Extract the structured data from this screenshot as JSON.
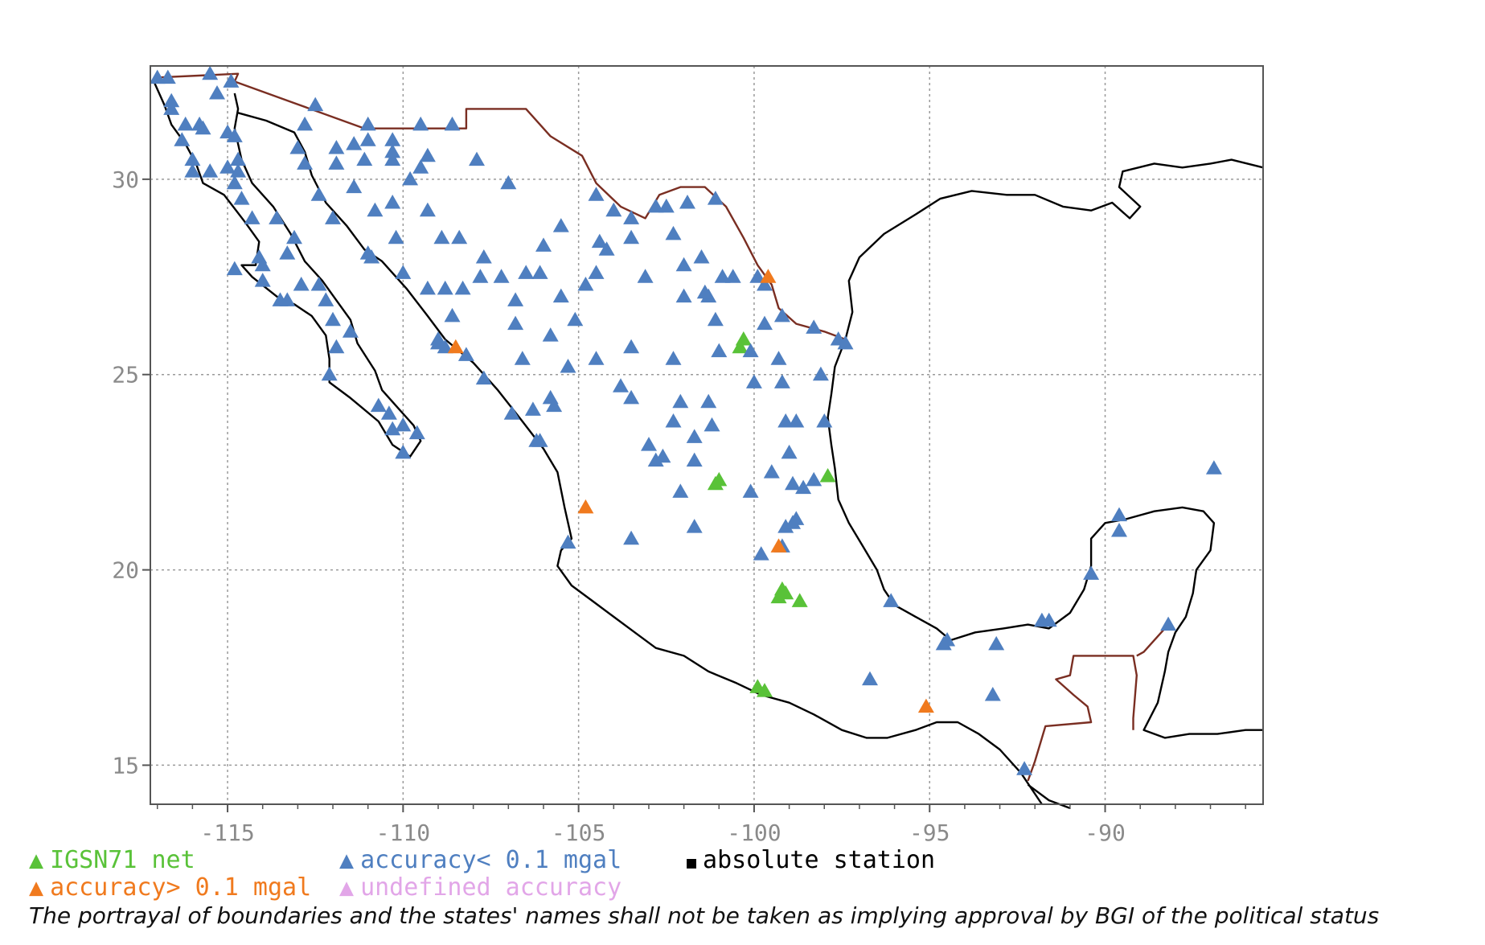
{
  "chart_data": {
    "type": "scatter",
    "title": "",
    "xlabel": "",
    "ylabel": "",
    "xlim": [
      -117.2,
      -85.5
    ],
    "ylim": [
      14.0,
      32.9
    ],
    "x_ticks": [
      -115,
      -110,
      -105,
      -100,
      -95,
      -90
    ],
    "y_ticks": [
      15,
      20,
      25,
      30
    ],
    "x_tick_labels": [
      "-115",
      "-110",
      "-105",
      "-100",
      "-95",
      "-90"
    ],
    "y_tick_labels": [
      "15",
      "20",
      "25",
      "30"
    ],
    "grid": true,
    "legend_position": "bottom",
    "series": [
      {
        "name": "IGSN71 net",
        "color": "#59c238",
        "marker": "triangle",
        "points": [
          [
            -100.3,
            25.9
          ],
          [
            -100.4,
            25.7
          ],
          [
            -101.0,
            22.3
          ],
          [
            -101.1,
            22.2
          ],
          [
            -97.9,
            22.4
          ],
          [
            -99.2,
            19.5
          ],
          [
            -99.1,
            19.4
          ],
          [
            -99.3,
            19.3
          ],
          [
            -98.7,
            19.2
          ],
          [
            -99.9,
            17.0
          ],
          [
            -99.7,
            16.9
          ]
        ]
      },
      {
        "name": "accuracy< 0.1 mgal",
        "color": "#4f7fc0",
        "marker": "triangle",
        "points": [
          [
            -117.0,
            32.6
          ],
          [
            -116.7,
            32.6
          ],
          [
            -115.5,
            32.7
          ],
          [
            -114.9,
            32.5
          ],
          [
            -116.6,
            32.0
          ],
          [
            -116.6,
            31.8
          ],
          [
            -115.3,
            32.2
          ],
          [
            -116.2,
            31.4
          ],
          [
            -115.8,
            31.4
          ],
          [
            -115.7,
            31.3
          ],
          [
            -116.3,
            31.0
          ],
          [
            -115.0,
            31.2
          ],
          [
            -114.8,
            31.1
          ],
          [
            -116.0,
            30.5
          ],
          [
            -116.0,
            30.2
          ],
          [
            -115.5,
            30.2
          ],
          [
            -115.0,
            30.3
          ],
          [
            -114.7,
            30.5
          ],
          [
            -114.7,
            30.2
          ],
          [
            -114.8,
            29.9
          ],
          [
            -114.6,
            29.5
          ],
          [
            -114.3,
            29.0
          ],
          [
            -114.1,
            28.0
          ],
          [
            -113.6,
            29.0
          ],
          [
            -113.1,
            28.5
          ],
          [
            -113.3,
            28.1
          ],
          [
            -114.0,
            27.8
          ],
          [
            -114.8,
            27.7
          ],
          [
            -114.0,
            27.4
          ],
          [
            -113.5,
            26.9
          ],
          [
            -113.3,
            26.9
          ],
          [
            -112.9,
            27.3
          ],
          [
            -112.4,
            27.3
          ],
          [
            -112.2,
            26.9
          ],
          [
            -112.0,
            26.4
          ],
          [
            -111.5,
            26.1
          ],
          [
            -111.9,
            25.7
          ],
          [
            -112.1,
            25.0
          ],
          [
            -110.7,
            24.2
          ],
          [
            -110.4,
            24.0
          ],
          [
            -110.0,
            23.7
          ],
          [
            -109.6,
            23.5
          ],
          [
            -110.3,
            23.6
          ],
          [
            -110.0,
            23.0
          ],
          [
            -112.8,
            31.4
          ],
          [
            -112.5,
            31.9
          ],
          [
            -113.0,
            30.8
          ],
          [
            -112.8,
            30.4
          ],
          [
            -112.4,
            29.6
          ],
          [
            -112.0,
            29.0
          ],
          [
            -111.9,
            30.8
          ],
          [
            -111.9,
            30.4
          ],
          [
            -111.4,
            30.9
          ],
          [
            -111.1,
            30.5
          ],
          [
            -111.0,
            31.4
          ],
          [
            -111.0,
            31.0
          ],
          [
            -110.3,
            31.0
          ],
          [
            -110.3,
            30.7
          ],
          [
            -110.3,
            30.5
          ],
          [
            -111.4,
            29.8
          ],
          [
            -110.8,
            29.2
          ],
          [
            -110.3,
            29.4
          ],
          [
            -110.9,
            28.0
          ],
          [
            -111.0,
            28.1
          ],
          [
            -110.2,
            28.5
          ],
          [
            -110.0,
            27.6
          ],
          [
            -109.8,
            30.0
          ],
          [
            -109.5,
            30.3
          ],
          [
            -109.3,
            30.6
          ],
          [
            -109.5,
            31.4
          ],
          [
            -108.6,
            31.4
          ],
          [
            -107.9,
            30.5
          ],
          [
            -107.0,
            29.9
          ],
          [
            -109.3,
            29.2
          ],
          [
            -108.9,
            28.5
          ],
          [
            -108.4,
            28.5
          ],
          [
            -107.7,
            28.0
          ],
          [
            -107.2,
            27.5
          ],
          [
            -106.1,
            27.6
          ],
          [
            -106.8,
            26.9
          ],
          [
            -105.5,
            27.0
          ],
          [
            -109.3,
            27.2
          ],
          [
            -108.8,
            27.2
          ],
          [
            -108.3,
            27.2
          ],
          [
            -107.8,
            27.5
          ],
          [
            -106.5,
            27.6
          ],
          [
            -106.0,
            28.3
          ],
          [
            -105.5,
            28.8
          ],
          [
            -104.8,
            27.3
          ],
          [
            -104.5,
            27.6
          ],
          [
            -104.4,
            28.4
          ],
          [
            -104.2,
            28.2
          ],
          [
            -103.5,
            28.5
          ],
          [
            -103.1,
            27.5
          ],
          [
            -102.8,
            29.3
          ],
          [
            -102.5,
            29.3
          ],
          [
            -101.9,
            29.4
          ],
          [
            -101.1,
            29.5
          ],
          [
            -104.5,
            29.6
          ],
          [
            -104.0,
            29.2
          ],
          [
            -103.5,
            29.0
          ],
          [
            -102.3,
            28.6
          ],
          [
            -101.5,
            28.0
          ],
          [
            -100.9,
            27.5
          ],
          [
            -100.6,
            27.5
          ],
          [
            -102.0,
            27.8
          ],
          [
            -102.0,
            27.0
          ],
          [
            -101.3,
            27.0
          ],
          [
            -101.1,
            26.4
          ],
          [
            -108.6,
            26.5
          ],
          [
            -109.0,
            25.9
          ],
          [
            -109.0,
            25.8
          ],
          [
            -108.8,
            25.7
          ],
          [
            -108.2,
            25.5
          ],
          [
            -106.8,
            26.3
          ],
          [
            -106.6,
            25.4
          ],
          [
            -105.8,
            26.0
          ],
          [
            -105.1,
            26.4
          ],
          [
            -104.5,
            25.4
          ],
          [
            -105.3,
            25.2
          ],
          [
            -107.7,
            24.9
          ],
          [
            -106.9,
            24.0
          ],
          [
            -106.3,
            24.1
          ],
          [
            -105.8,
            24.4
          ],
          [
            -105.7,
            24.2
          ],
          [
            -106.1,
            23.3
          ],
          [
            -106.2,
            23.3
          ],
          [
            -103.5,
            25.7
          ],
          [
            -103.8,
            24.7
          ],
          [
            -103.5,
            24.4
          ],
          [
            -102.3,
            25.4
          ],
          [
            -101.0,
            25.6
          ],
          [
            -100.1,
            25.6
          ],
          [
            -99.3,
            25.4
          ],
          [
            -98.1,
            25.0
          ],
          [
            -97.4,
            25.8
          ],
          [
            -97.6,
            25.9
          ],
          [
            -98.3,
            26.2
          ],
          [
            -99.2,
            26.5
          ],
          [
            -99.7,
            26.3
          ],
          [
            -99.7,
            27.3
          ],
          [
            -99.9,
            27.5
          ],
          [
            -101.4,
            27.1
          ],
          [
            -100.0,
            24.8
          ],
          [
            -99.2,
            24.8
          ],
          [
            -101.2,
            23.7
          ],
          [
            -99.1,
            23.8
          ],
          [
            -98.8,
            23.8
          ],
          [
            -98.0,
            23.8
          ],
          [
            -102.1,
            24.3
          ],
          [
            -101.3,
            24.3
          ],
          [
            -102.3,
            23.8
          ],
          [
            -101.7,
            23.4
          ],
          [
            -102.6,
            22.9
          ],
          [
            -102.8,
            22.8
          ],
          [
            -103.0,
            23.2
          ],
          [
            -101.7,
            22.8
          ],
          [
            -102.1,
            22.0
          ],
          [
            -99.0,
            23.0
          ],
          [
            -99.5,
            22.5
          ],
          [
            -98.9,
            22.2
          ],
          [
            -98.6,
            22.1
          ],
          [
            -98.3,
            22.3
          ],
          [
            -100.1,
            22.0
          ],
          [
            -101.7,
            21.1
          ],
          [
            -99.1,
            21.1
          ],
          [
            -98.8,
            21.3
          ],
          [
            -98.9,
            21.2
          ],
          [
            -99.2,
            20.6
          ],
          [
            -99.8,
            20.4
          ],
          [
            -103.5,
            20.8
          ],
          [
            -105.3,
            20.7
          ],
          [
            -96.1,
            19.2
          ],
          [
            -94.6,
            18.1
          ],
          [
            -94.5,
            18.2
          ],
          [
            -93.1,
            18.1
          ],
          [
            -91.8,
            18.7
          ],
          [
            -91.6,
            18.7
          ],
          [
            -90.4,
            19.9
          ],
          [
            -89.6,
            21.4
          ],
          [
            -89.6,
            21.0
          ],
          [
            -88.2,
            18.6
          ],
          [
            -86.9,
            22.6
          ],
          [
            -96.7,
            17.2
          ],
          [
            -93.2,
            16.8
          ],
          [
            -92.3,
            14.9
          ]
        ]
      },
      {
        "name": "accuracy> 0.1 mgal",
        "color": "#f07a1e",
        "marker": "triangle",
        "points": [
          [
            -108.5,
            25.7
          ],
          [
            -104.8,
            21.6
          ],
          [
            -99.6,
            27.5
          ],
          [
            -99.3,
            20.6
          ],
          [
            -95.1,
            16.5
          ]
        ]
      },
      {
        "name": "undefined accuracy",
        "color": "#e2a6e8",
        "marker": "triangle",
        "points": []
      }
    ],
    "legend": [
      {
        "symbol": "▲",
        "text": "IGSN71 net",
        "color": "#59c238"
      },
      {
        "symbol": "▲",
        "text": "accuracy< 0.1 mgal",
        "color": "#4f7fc0"
      },
      {
        "symbol": "■",
        "text": "absolute station",
        "color": "#000000"
      },
      {
        "symbol": "▲",
        "text": "accuracy> 0.1 mgal",
        "color": "#f07a1e"
      },
      {
        "symbol": "▲",
        "text": "undefined accuracy",
        "color": "#e2a6e8"
      }
    ]
  },
  "map_features": {
    "coastline_color": "#000000",
    "border_color": "#7a2e22",
    "grid_color": "#9a9a9a",
    "frame_color": "#555555"
  },
  "disclaimer": "The portrayal of boundaries and the states' names shall not be taken as implying approval by BGI of the political status"
}
